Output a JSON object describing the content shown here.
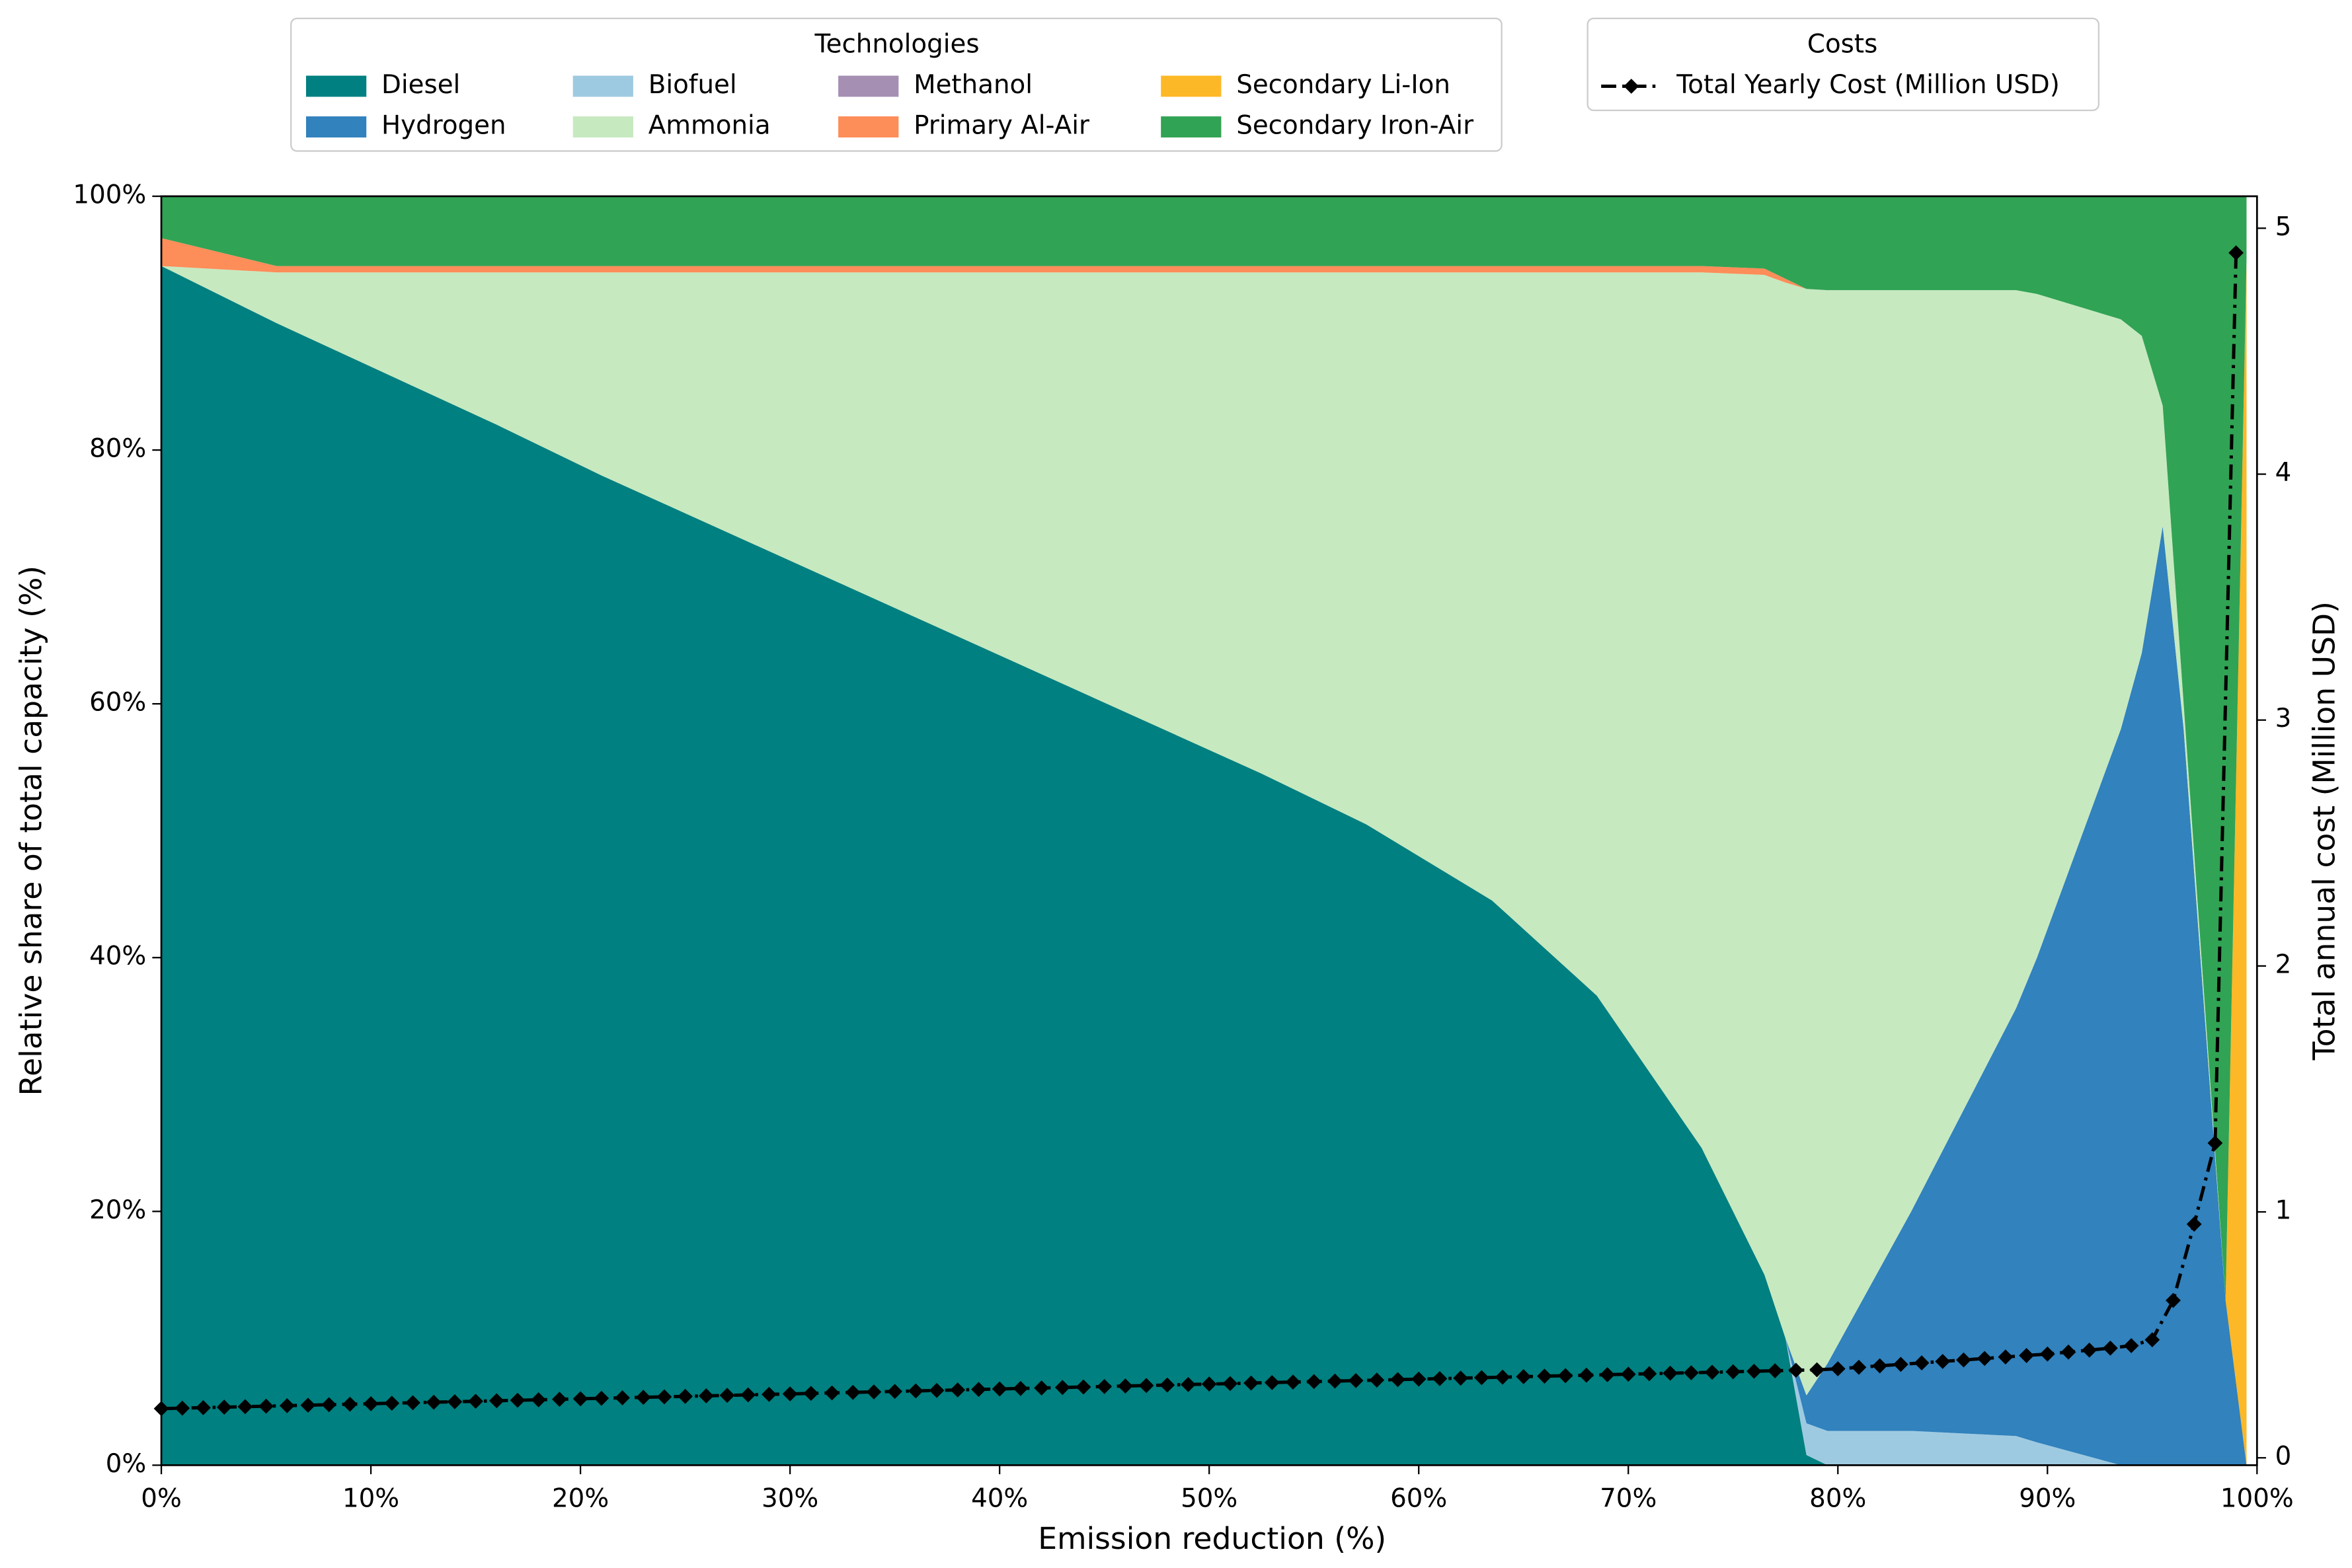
{
  "chart_data": {
    "type": "stacked_area",
    "xlabel": "Emission reduction (%)",
    "ylabel": "Relative share of total capacity (%)",
    "y2label": "Total annual cost (Million USD)",
    "legend_title": "Technologies",
    "legend2_title": "Costs",
    "legend_location": "upper center",
    "x": [
      0,
      5.5,
      16,
      21,
      52.5,
      57.5,
      62.5,
      63.5,
      67.5,
      68.5,
      73.5,
      76.5,
      77.5,
      78.5,
      79.5,
      83.5,
      88.5,
      89.5,
      93.5,
      94.5,
      95.5,
      96.5,
      98.5,
      99.5
    ],
    "series": [
      {
        "name": "Diesel",
        "color": "#008080",
        "values": [
          94.5,
          90,
          82,
          78,
          54.5,
          50.5,
          45.5,
          44.5,
          38.5,
          37,
          25,
          15,
          10,
          0.8,
          0,
          0,
          0,
          0,
          0,
          0,
          0,
          0,
          0,
          0
        ]
      },
      {
        "name": "Biofuel",
        "color": "#9ecae1",
        "values": [
          0,
          0,
          0,
          0,
          0,
          0,
          0,
          0,
          0,
          0,
          0,
          0,
          0,
          2.5,
          2.7,
          2.7,
          2.3,
          1.8,
          0,
          0,
          0,
          0,
          0,
          0
        ]
      },
      {
        "name": "Hydrogen",
        "color": "#3182bd",
        "values": [
          0,
          0,
          0,
          0,
          0,
          0,
          0,
          0,
          0,
          0,
          0,
          0,
          0,
          2.2,
          5.3,
          17.3,
          33.7,
          38.2,
          58,
          64,
          74,
          58,
          13,
          0
        ]
      },
      {
        "name": "Ammonia",
        "color": "#c7e9c0",
        "values": [
          0,
          4,
          12,
          16,
          39.5,
          43.5,
          48.5,
          49.5,
          55.5,
          57,
          69,
          78.8,
          83.2,
          87.2,
          84.6,
          72.6,
          56.6,
          52.3,
          32.3,
          25,
          9.5,
          2,
          0,
          0
        ]
      },
      {
        "name": "Methanol",
        "color": "#a58fb3",
        "values": [
          0,
          0,
          0,
          0,
          0,
          0,
          0,
          0,
          0,
          0,
          0,
          0,
          0,
          0,
          0,
          0,
          0,
          0,
          0,
          0,
          0,
          0,
          0,
          0
        ]
      },
      {
        "name": "Primary Al-Air",
        "color": "#fd8d59",
        "values": [
          2.2,
          0.5,
          0.5,
          0.5,
          0.5,
          0.5,
          0.5,
          0.5,
          0.5,
          0.5,
          0.5,
          0.5,
          0.3,
          0,
          0,
          0,
          0,
          0,
          0,
          0,
          0,
          0,
          0,
          0
        ]
      },
      {
        "name": "Secondary Li-Ion",
        "color": "#fdb827",
        "values": [
          0,
          0,
          0,
          0,
          0,
          0,
          0,
          0,
          0,
          0,
          0,
          0,
          0,
          0,
          0,
          0,
          0,
          0,
          0,
          0,
          0,
          0,
          0,
          95
        ]
      },
      {
        "name": "Secondary Iron-Air",
        "color": "#31a354",
        "values": [
          3.3,
          5.5,
          5.5,
          5.5,
          5.5,
          5.5,
          5.5,
          5.5,
          5.5,
          5.5,
          5.5,
          5.7,
          6.5,
          7.3,
          7.4,
          7.4,
          7.4,
          7.7,
          9.7,
          11,
          16.5,
          40,
          87,
          5
        ]
      }
    ],
    "cost": {
      "name": "Total Yearly Cost (Million USD)",
      "color": "#000000",
      "axis": "y2",
      "x": [
        0,
        1,
        2,
        3,
        4,
        5,
        6,
        7,
        8,
        9,
        10,
        11,
        12,
        13,
        14,
        15,
        16,
        17,
        18,
        19,
        20,
        21,
        22,
        23,
        24,
        25,
        26,
        27,
        28,
        29,
        30,
        31,
        32,
        33,
        34,
        35,
        36,
        37,
        38,
        39,
        40,
        41,
        42,
        43,
        44,
        45,
        46,
        47,
        48,
        49,
        50,
        51,
        52,
        53,
        54,
        55,
        56,
        57,
        58,
        59,
        60,
        61,
        62,
        63,
        64,
        65,
        66,
        67,
        68,
        69,
        70,
        71,
        72,
        73,
        74,
        75,
        76,
        77,
        78,
        79,
        80,
        81,
        82,
        83,
        84,
        85,
        86,
        87,
        88,
        89,
        90,
        91,
        92,
        93,
        94,
        95,
        96,
        97,
        98,
        99
      ],
      "values": [
        0.2,
        0.202,
        0.204,
        0.206,
        0.208,
        0.21,
        0.212,
        0.214,
        0.216,
        0.218,
        0.22,
        0.222,
        0.224,
        0.226,
        0.228,
        0.23,
        0.232,
        0.234,
        0.236,
        0.238,
        0.24,
        0.242,
        0.244,
        0.246,
        0.248,
        0.25,
        0.252,
        0.254,
        0.256,
        0.258,
        0.26,
        0.262,
        0.264,
        0.266,
        0.268,
        0.27,
        0.272,
        0.274,
        0.276,
        0.278,
        0.28,
        0.282,
        0.284,
        0.286,
        0.288,
        0.29,
        0.292,
        0.294,
        0.296,
        0.298,
        0.3,
        0.302,
        0.304,
        0.306,
        0.308,
        0.31,
        0.312,
        0.314,
        0.316,
        0.318,
        0.32,
        0.322,
        0.324,
        0.326,
        0.328,
        0.33,
        0.332,
        0.334,
        0.336,
        0.338,
        0.34,
        0.342,
        0.344,
        0.346,
        0.348,
        0.35,
        0.352,
        0.354,
        0.356,
        0.358,
        0.362,
        0.368,
        0.374,
        0.38,
        0.386,
        0.392,
        0.398,
        0.404,
        0.41,
        0.416,
        0.422,
        0.43,
        0.438,
        0.446,
        0.456,
        0.48,
        0.64,
        0.95,
        1.28,
        4.9
      ]
    },
    "xlim": [
      0,
      100
    ],
    "xticks": [
      {
        "value": 0,
        "label": "0%"
      },
      {
        "value": 10,
        "label": "10%"
      },
      {
        "value": 20,
        "label": "20%"
      },
      {
        "value": 30,
        "label": "30%"
      },
      {
        "value": 40,
        "label": "40%"
      },
      {
        "value": 50,
        "label": "50%"
      },
      {
        "value": 60,
        "label": "60%"
      },
      {
        "value": 70,
        "label": "70%"
      },
      {
        "value": 80,
        "label": "80%"
      },
      {
        "value": 90,
        "label": "90%"
      },
      {
        "value": 100,
        "label": "100%"
      }
    ],
    "ylim": [
      0,
      100
    ],
    "yticks": [
      {
        "value": 0,
        "label": "0%"
      },
      {
        "value": 20,
        "label": "20%"
      },
      {
        "value": 40,
        "label": "40%"
      },
      {
        "value": 60,
        "label": "60%"
      },
      {
        "value": 80,
        "label": "80%"
      },
      {
        "value": 100,
        "label": "100%"
      }
    ],
    "y2lim": [
      -0.03,
      5.13
    ],
    "y2ticks": [
      0,
      1,
      2,
      3,
      4,
      5
    ],
    "grid": false
  }
}
